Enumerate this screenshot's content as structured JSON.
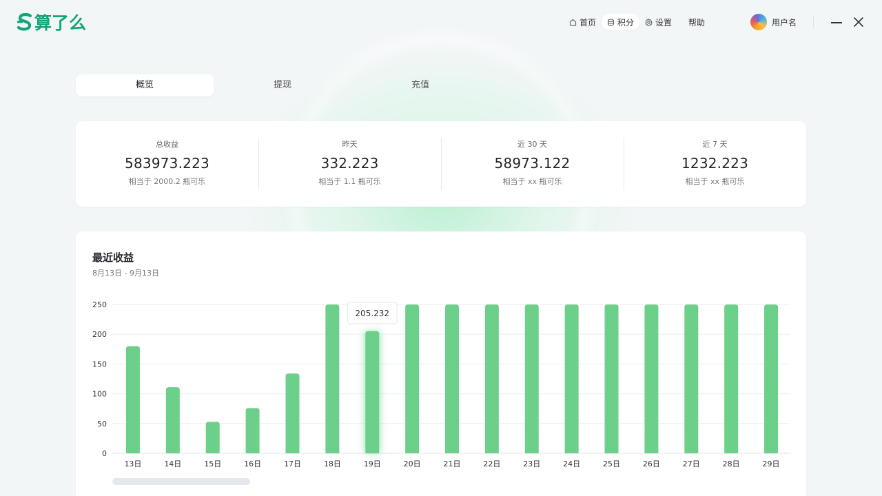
{
  "app": {
    "logo_text": "算了么",
    "accent": "#12a57a"
  },
  "nav": {
    "items": [
      {
        "label": "首页",
        "icon": "home-icon"
      },
      {
        "label": "积分",
        "icon": "coins-icon",
        "active": true
      },
      {
        "label": "设置",
        "icon": "gear-icon"
      }
    ],
    "help_label": "帮助",
    "username": "用户名"
  },
  "tabs": [
    {
      "label": "概览",
      "active": true
    },
    {
      "label": "提现"
    },
    {
      "label": "充值"
    }
  ],
  "stats": [
    {
      "label": "总收益",
      "value": "583973.223",
      "sub": "相当于 2000.2 瓶可乐"
    },
    {
      "label": "昨天",
      "value": "332.223",
      "sub": "相当于 1.1 瓶可乐"
    },
    {
      "label": "近 30 天",
      "value": "58973.122",
      "sub": "相当于 xx 瓶可乐"
    },
    {
      "label": "近 7 天",
      "value": "1232.223",
      "sub": "相当于 xx 瓶可乐"
    }
  ],
  "chart": {
    "title": "最近收益",
    "range": "8月13日 - 9月13日"
  },
  "chart_data": {
    "type": "bar",
    "categories": [
      "13日",
      "14日",
      "15日",
      "16日",
      "17日",
      "18日",
      "19日",
      "20日",
      "21日",
      "22日",
      "23日",
      "24日",
      "25日",
      "26日",
      "27日",
      "28日",
      "29日"
    ],
    "values": [
      180,
      111,
      53,
      76,
      134,
      250,
      205.232,
      250,
      250,
      250,
      250,
      250,
      250,
      250,
      250,
      250,
      250
    ],
    "ylim": [
      0,
      250
    ],
    "yticks": [
      0,
      50,
      100,
      150,
      200,
      250
    ],
    "grid": true,
    "bar_color": "#6dd08a",
    "highlight_index": 6,
    "tooltip": "205.232"
  }
}
